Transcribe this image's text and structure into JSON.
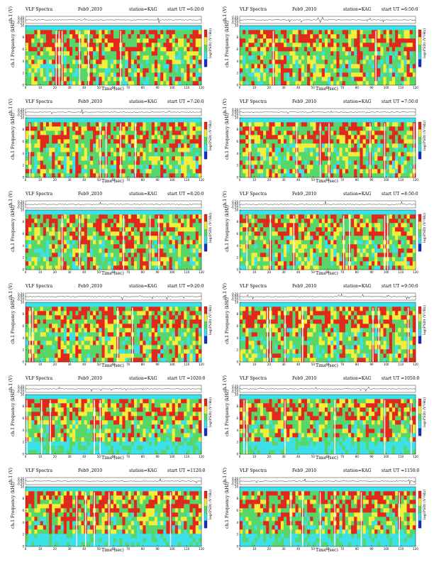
{
  "common": {
    "title": "VLF Spectra",
    "date": "Feb9 ,2010",
    "station": "station=KAG",
    "ut_prefix": "start  UT =",
    "ch_label": "ch.1 (V)",
    "freq_label": "ch.1 Frequency (kHz)",
    "cb_label": "log(PSD) (V²/Hz)",
    "xlabel": "Time (sec)",
    "colors": {
      "cyan": "#3ce0e8",
      "green": "#57d66a",
      "yellow": "#f2ee3a",
      "red": "#e0281c",
      "blue": "#1830c8",
      "white": "#ffffff"
    }
  },
  "chart_data": [
    {
      "type": "heatmap",
      "start_ut": "6:20:0",
      "xlabel": "Time (sec)",
      "ylabel": "Frequency (kHz)",
      "xlim": [
        0,
        120
      ],
      "ylim": [
        0,
        10
      ],
      "ch1_ylim": [
        -0.2,
        0.2
      ],
      "xticks": [
        0,
        10,
        20,
        30,
        40,
        50,
        60,
        70,
        80,
        90,
        100,
        110,
        120
      ],
      "yticks": [
        0,
        2,
        4,
        6,
        8,
        10
      ]
    },
    {
      "type": "heatmap",
      "start_ut": "6:50:0",
      "xlabel": "Time (sec)",
      "ylabel": "Frequency (kHz)",
      "xlim": [
        0,
        120
      ],
      "ylim": [
        0,
        10
      ],
      "ch1_ylim": [
        -0.2,
        0.2
      ],
      "xticks": [
        0,
        10,
        20,
        30,
        40,
        50,
        60,
        70,
        80,
        90,
        100,
        110,
        120
      ],
      "yticks": [
        0,
        2,
        4,
        6,
        8,
        10
      ]
    },
    {
      "type": "heatmap",
      "start_ut": "7:20:0",
      "xlabel": "Time (sec)",
      "ylabel": "Frequency (kHz)",
      "xlim": [
        0,
        120
      ],
      "ylim": [
        0,
        10
      ],
      "ch1_ylim": [
        -0.2,
        0.2
      ],
      "xticks": [
        0,
        10,
        20,
        30,
        40,
        50,
        60,
        70,
        80,
        90,
        100,
        110,
        120
      ],
      "yticks": [
        0,
        2,
        4,
        6,
        8,
        10
      ]
    },
    {
      "type": "heatmap",
      "start_ut": "7:50:0",
      "xlabel": "Time (sec)",
      "ylabel": "Frequency (kHz)",
      "xlim": [
        0,
        120
      ],
      "ylim": [
        0,
        10
      ],
      "ch1_ylim": [
        -0.2,
        0.2
      ],
      "xticks": [
        0,
        10,
        20,
        30,
        40,
        50,
        60,
        70,
        80,
        90,
        100,
        110,
        120
      ],
      "yticks": [
        0,
        2,
        4,
        6,
        8,
        10
      ]
    },
    {
      "type": "heatmap",
      "start_ut": "8:20:0",
      "xlabel": "Time (sec)",
      "ylabel": "Frequency (kHz)",
      "xlim": [
        0,
        120
      ],
      "ylim": [
        0,
        10
      ],
      "ch1_ylim": [
        -0.2,
        0.2
      ],
      "xticks": [
        0,
        10,
        20,
        30,
        40,
        50,
        60,
        70,
        80,
        90,
        100,
        110,
        120
      ],
      "yticks": [
        0,
        2,
        4,
        6,
        8,
        10
      ]
    },
    {
      "type": "heatmap",
      "start_ut": "8:50:0",
      "xlabel": "Time (sec)",
      "ylabel": "Frequency (kHz)",
      "xlim": [
        0,
        120
      ],
      "ylim": [
        0,
        10
      ],
      "ch1_ylim": [
        -0.2,
        0.2
      ],
      "xticks": [
        0,
        10,
        20,
        30,
        40,
        50,
        60,
        70,
        80,
        90,
        100,
        110,
        120
      ],
      "yticks": [
        0,
        2,
        4,
        6,
        8,
        10
      ]
    },
    {
      "type": "heatmap",
      "start_ut": "9:20:0",
      "xlabel": "Time (sec)",
      "ylabel": "Frequency (kHz)",
      "xlim": [
        0,
        120
      ],
      "ylim": [
        0,
        10
      ],
      "ch1_ylim": [
        -0.2,
        0.2
      ],
      "xticks": [
        0,
        10,
        20,
        30,
        40,
        50,
        60,
        70,
        80,
        90,
        100,
        110,
        120
      ],
      "yticks": [
        0,
        2,
        4,
        6,
        8,
        10
      ]
    },
    {
      "type": "heatmap",
      "start_ut": "9:50:0",
      "xlabel": "Time (sec)",
      "ylabel": "Frequency (kHz)",
      "xlim": [
        0,
        120
      ],
      "ylim": [
        0,
        10
      ],
      "ch1_ylim": [
        -0.2,
        0.2
      ],
      "xticks": [
        0,
        10,
        20,
        30,
        40,
        50,
        60,
        70,
        80,
        90,
        100,
        110,
        120
      ],
      "yticks": [
        0,
        2,
        4,
        6,
        8,
        10
      ]
    },
    {
      "type": "heatmap",
      "start_ut": "1020:0",
      "xlabel": "Time (sec)",
      "ylabel": "Frequency (kHz)",
      "xlim": [
        0,
        120
      ],
      "ylim": [
        0,
        10
      ],
      "ch1_ylim": [
        -0.2,
        0.2
      ],
      "xticks": [
        0,
        10,
        20,
        30,
        40,
        50,
        60,
        70,
        80,
        90,
        100,
        110,
        120
      ],
      "yticks": [
        0,
        2,
        4,
        6,
        8,
        10
      ]
    },
    {
      "type": "heatmap",
      "start_ut": "1050:0",
      "xlabel": "Time (sec)",
      "ylabel": "Frequency (kHz)",
      "xlim": [
        0,
        120
      ],
      "ylim": [
        0,
        10
      ],
      "ch1_ylim": [
        -0.2,
        0.2
      ],
      "xticks": [
        0,
        10,
        20,
        30,
        40,
        50,
        60,
        70,
        80,
        90,
        100,
        110,
        120
      ],
      "yticks": [
        0,
        2,
        4,
        6,
        8,
        10
      ]
    },
    {
      "type": "heatmap",
      "start_ut": "1120:0",
      "xlabel": "Time (sec)",
      "ylabel": "Frequency (kHz)",
      "xlim": [
        0,
        120
      ],
      "ylim": [
        0,
        10
      ],
      "ch1_ylim": [
        -0.2,
        0.2
      ],
      "xticks": [
        0,
        10,
        20,
        30,
        40,
        50,
        60,
        70,
        80,
        90,
        100,
        110,
        120
      ],
      "yticks": [
        0,
        2,
        4,
        6,
        8,
        10
      ]
    },
    {
      "type": "heatmap",
      "start_ut": "1150:0",
      "xlabel": "Time (sec)",
      "ylabel": "Frequency (kHz)",
      "xlim": [
        0,
        120
      ],
      "ylim": [
        0,
        10
      ],
      "ch1_ylim": [
        -0.2,
        0.2
      ],
      "xticks": [
        0,
        10,
        20,
        30,
        40,
        50,
        60,
        70,
        80,
        90,
        100,
        110,
        120
      ],
      "yticks": [
        0,
        2,
        4,
        6,
        8,
        10
      ]
    }
  ]
}
